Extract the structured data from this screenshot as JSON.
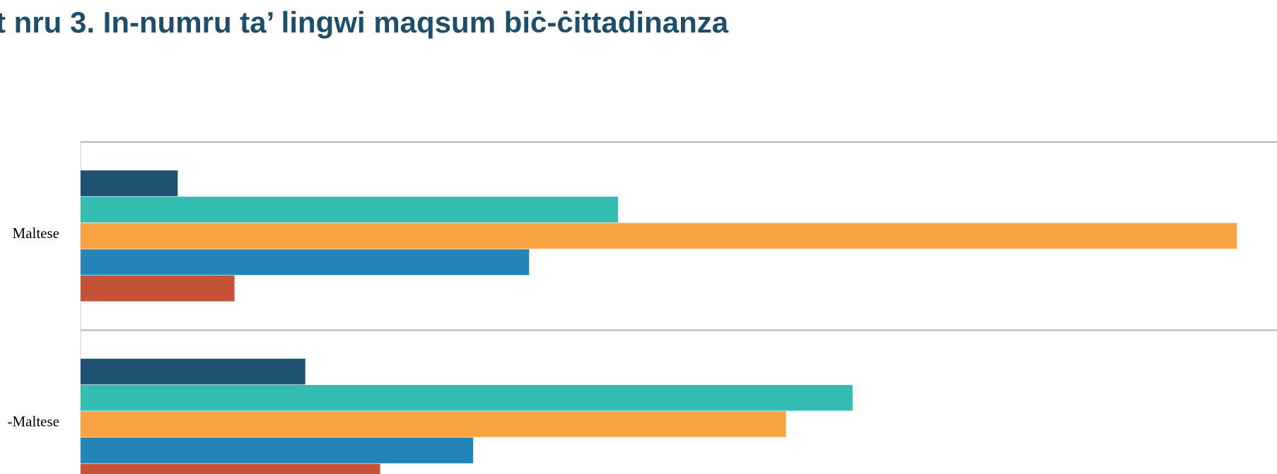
{
  "chart_data": {
    "type": "barh",
    "title": "t nru 3. In-numru ta’ lingwi maqsum biċ-ċittadinanza",
    "categories": [
      "Maltese",
      "-Maltese"
    ],
    "xlim": [
      0,
      1452
    ],
    "series": [
      {
        "color": "#1f5270",
        "values": [
          118,
          273
        ]
      },
      {
        "color": "#33bdb0",
        "values": [
          653,
          938
        ]
      },
      {
        "color": "#f9a343",
        "values": [
          1405,
          857
        ]
      },
      {
        "color": "#2384b8",
        "values": [
          545,
          477
        ]
      },
      {
        "color": "#c45236",
        "values": [
          187,
          364
        ]
      }
    ]
  }
}
